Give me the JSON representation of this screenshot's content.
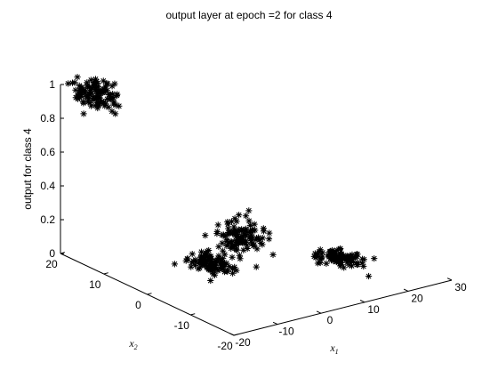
{
  "chart_data": {
    "type": "scatter",
    "title": "output layer at epoch =2 for class 4",
    "xlabel": "x",
    "xlabel_sub": "1",
    "ylabel": "x",
    "ylabel_sub": "2",
    "zlabel": "output for class 4",
    "xlim": [
      -20,
      30
    ],
    "ylim": [
      -20,
      20
    ],
    "zlim": [
      0,
      1
    ],
    "x_ticks": [
      "-20",
      "-10",
      "0",
      "10",
      "20",
      "30"
    ],
    "y_ticks": [
      "-20",
      "-10",
      "0",
      "10",
      "20"
    ],
    "z_ticks": [
      "0",
      "0.2",
      "0.4",
      "0.6",
      "0.8",
      "1"
    ],
    "marker": "*",
    "marker_color": "#000000",
    "grid": false,
    "clusters": [
      {
        "center": [
          -14,
          18,
          0.93
        ],
        "spread": [
          2,
          2,
          0.04
        ],
        "count": 110
      },
      {
        "center": [
          6,
          4,
          0.12
        ],
        "spread": [
          2,
          2,
          0.04
        ],
        "count": 110
      },
      {
        "center": [
          -2,
          4,
          0.02
        ],
        "spread": [
          2,
          2,
          0.015
        ],
        "count": 110
      },
      {
        "center": [
          20,
          -4,
          0.0
        ],
        "spread": [
          2,
          2,
          0.008
        ],
        "count": 110
      }
    ]
  }
}
